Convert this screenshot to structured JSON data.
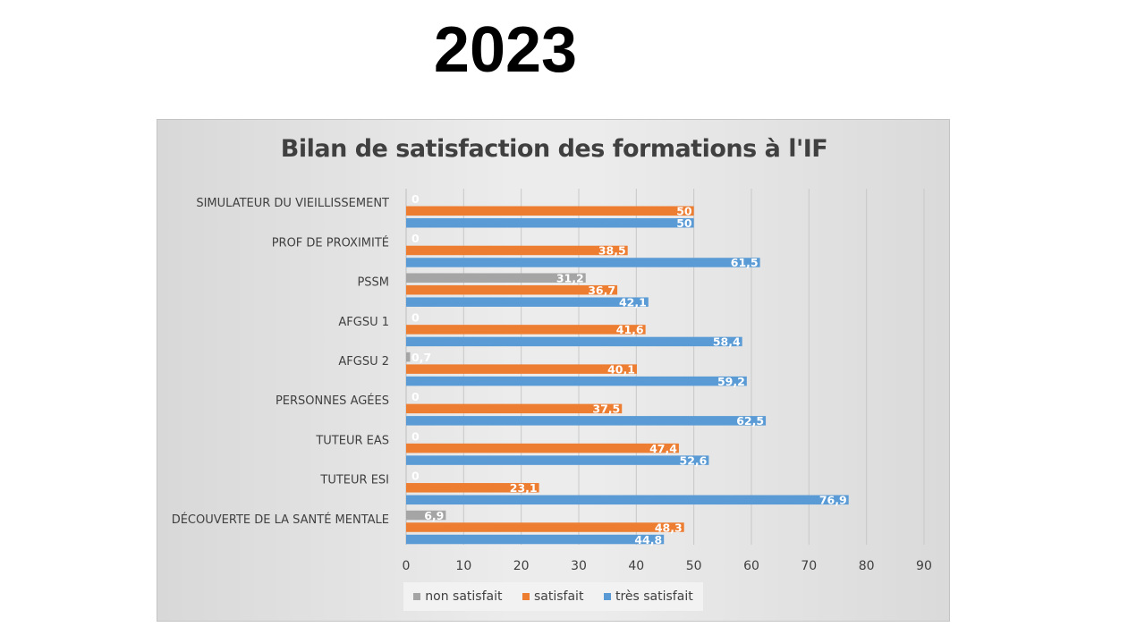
{
  "slide": {
    "title": "2023"
  },
  "colors": {
    "non_satisfait": "#a5a5a5",
    "satisfait": "#ed7d31",
    "tres_satisfait": "#5b9bd5"
  },
  "chart_data": {
    "type": "bar",
    "orientation": "horizontal",
    "title": "Bilan de satisfaction des formations à l'IF",
    "categories": [
      "SIMULATEUR DU VIEILLISSEMENT",
      "PROF DE PROXIMITÉ",
      "PSSM",
      "AFGSU 1",
      "AFGSU 2",
      "PERSONNES AGÉES",
      "TUTEUR EAS",
      "TUTEUR ESI",
      "DÉCOUVERTE DE LA SANTÉ MENTALE"
    ],
    "series": [
      {
        "name": "non satisfait",
        "values": [
          0,
          0,
          31.2,
          0,
          0.7,
          0,
          0,
          0,
          6.9
        ],
        "labels": [
          "0",
          "0",
          "31,2",
          "0",
          "0,7",
          "0",
          "0",
          "0",
          "6,9"
        ]
      },
      {
        "name": "satisfait",
        "values": [
          50,
          38.5,
          36.7,
          41.6,
          40.1,
          37.5,
          47.4,
          23.1,
          48.3
        ],
        "labels": [
          "50",
          "38,5",
          "36,7",
          "41,6",
          "40,1",
          "37,5",
          "47,4",
          "23,1",
          "48,3"
        ]
      },
      {
        "name": "très satisfait",
        "values": [
          50,
          61.5,
          42.1,
          58.4,
          59.2,
          62.5,
          52.6,
          76.9,
          44.8
        ],
        "labels": [
          "50",
          "61,5",
          "42,1",
          "58,4",
          "59,2",
          "62,5",
          "52,6",
          "76,9",
          "44,8"
        ]
      }
    ],
    "xlim": [
      0,
      90
    ],
    "xticks": [
      0,
      10,
      20,
      30,
      40,
      50,
      60,
      70,
      80,
      90
    ],
    "grid": true,
    "legend_position": "bottom"
  }
}
